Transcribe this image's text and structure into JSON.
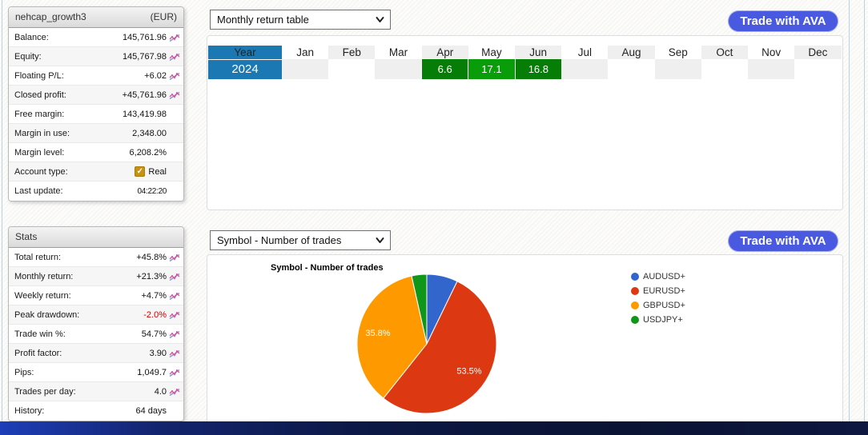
{
  "account_panel": {
    "title": "nehcap_growth3",
    "currency": "(EUR)",
    "rows": [
      {
        "label": "Balance:",
        "value": "145,761.96",
        "icon": true
      },
      {
        "label": "Equity:",
        "value": "145,767.98",
        "icon": true
      },
      {
        "label": "Floating P/L:",
        "value": "+6.02",
        "icon": true
      },
      {
        "label": "Closed profit:",
        "value": "+45,761.96",
        "icon": true
      },
      {
        "label": "Free margin:",
        "value": "143,419.98"
      },
      {
        "label": "Margin in use:",
        "value": "2,348.00"
      },
      {
        "label": "Margin level:",
        "value": "6,208.2%"
      },
      {
        "label": "Account type:",
        "value": "Real",
        "checkbox": true
      },
      {
        "label": "Last update:",
        "value": "04:22:20",
        "small": true
      }
    ]
  },
  "stats_panel": {
    "title": "Stats",
    "rows": [
      {
        "label": "Total return:",
        "value": "+45.8%",
        "icon": true
      },
      {
        "label": "Monthly return:",
        "value": "+21.3%",
        "icon": true
      },
      {
        "label": "Weekly return:",
        "value": "+4.7%",
        "icon": true
      },
      {
        "label": "Peak drawdown:",
        "value": "-2.0%",
        "icon": true,
        "negative": true
      },
      {
        "label": "Trade win %:",
        "value": "54.7%",
        "icon": true
      },
      {
        "label": "Profit factor:",
        "value": "3.90",
        "icon": true
      },
      {
        "label": "Pips:",
        "value": "1,049.7",
        "icon": true
      },
      {
        "label": "Trades per day:",
        "value": "4.0",
        "icon": true
      },
      {
        "label": "History:",
        "value": "64 days"
      }
    ]
  },
  "monthly_section": {
    "dropdown_value": "Monthly return table",
    "trade_button_label": "Trade with AVA",
    "table": {
      "year_header": "Year",
      "months": [
        "Jan",
        "Feb",
        "Mar",
        "Apr",
        "May",
        "Jun",
        "Jul",
        "Aug",
        "Sep",
        "Oct",
        "Nov",
        "Dec"
      ],
      "rows": [
        {
          "year": "2024",
          "values": {
            "Apr": "6.6",
            "May": "17.1",
            "Jun": "16.8"
          },
          "cell_colors": {
            "Apr": "#067d06",
            "May": "#0a9d0a",
            "Jun": "#067d06"
          }
        }
      ]
    }
  },
  "symbol_section": {
    "dropdown_value": "Symbol - Number of trades",
    "trade_button_label": "Trade with AVA",
    "chart_title": "Symbol - Number of trades"
  },
  "chart_data": {
    "type": "pie",
    "title": "Symbol - Number of trades",
    "legend_position": "right",
    "direction": "clockwise",
    "start_angle_deg": 0,
    "slices": [
      {
        "label": "AUDUSD+",
        "value": 7.2,
        "pct_label": "7.2%",
        "color": "#3366CC",
        "show_label": false
      },
      {
        "label": "EURUSD+",
        "value": 53.5,
        "pct_label": "53.5%",
        "color": "#DC3912",
        "show_label": true
      },
      {
        "label": "GBPUSD+",
        "value": 35.8,
        "pct_label": "35.8%",
        "color": "#FF9900",
        "show_label": true
      },
      {
        "label": "USDJPY+",
        "value": 3.5,
        "pct_label": "3.5%",
        "color": "#109618",
        "show_label": false
      }
    ]
  },
  "colors": {
    "table_header_blue": "#1b78b2",
    "month_green_dark": "#067d06",
    "month_green_bright": "#0a9d0a",
    "button_blue": "#4a5ae0",
    "negative_red": "#cc0000",
    "checkbox_gold": "#c6920f",
    "bottom_bar_left": "#1d3eb8",
    "bottom_bar_right": "#0a1333"
  }
}
